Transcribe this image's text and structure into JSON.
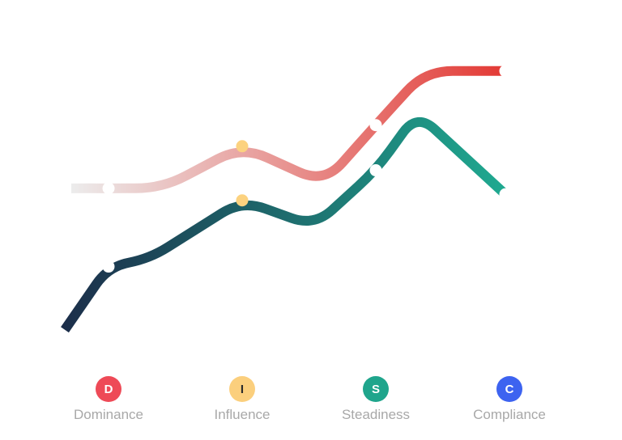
{
  "chart_data": {
    "type": "line",
    "title": "",
    "xlabel": "",
    "ylabel": "",
    "grid": false,
    "categories": [
      {
        "letter": "D",
        "label": "Dominance",
        "badge_color": "#ee4a57",
        "letter_color": "#ffffff"
      },
      {
        "letter": "I",
        "label": "Influence",
        "badge_color": "#fbcf7d",
        "letter_color": "#2b2b2b"
      },
      {
        "letter": "S",
        "label": "Steadiness",
        "badge_color": "#1fa58c",
        "letter_color": "#ffffff"
      },
      {
        "letter": "C",
        "label": "Compliance",
        "badge_color": "#3d63f0",
        "letter_color": "#ffffff"
      }
    ],
    "ylim": [
      0,
      100
    ],
    "series": [
      {
        "key": "upper",
        "gradient": [
          "#ececec",
          "#e33a35"
        ],
        "values": [
          53,
          67,
          74,
          92
        ],
        "start_value": 53,
        "marker_colors": [
          "#ffffff",
          "#fcd27f",
          "#ffffff",
          "#ffffff"
        ]
      },
      {
        "key": "lower",
        "gradient": [
          "#1c2e4a",
          "#1fa990"
        ],
        "values": [
          27,
          49,
          59,
          51
        ],
        "start_value": 6,
        "marker_colors": [
          "#ffffff",
          "#fcd27f",
          "#ffffff",
          "#ffffff"
        ]
      }
    ]
  }
}
